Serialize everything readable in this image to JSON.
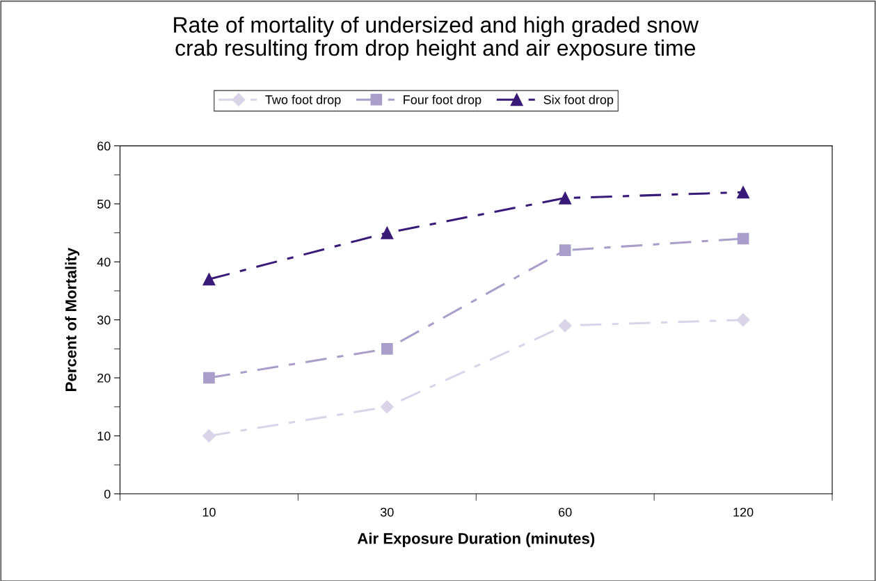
{
  "chart_data": {
    "type": "line",
    "title": "Rate of mortality of undersized and high graded snow\ncrab resulting from drop height and air exposure time",
    "xlabel": "Air Exposure Duration (minutes)",
    "ylabel": "Percent of Mortality",
    "categories": [
      "10",
      "30",
      "60",
      "120"
    ],
    "series": [
      {
        "name": "Two foot drop",
        "color": "#d9d4e8",
        "marker": "diamond",
        "values": [
          10,
          15,
          29,
          30
        ]
      },
      {
        "name": "Four foot drop",
        "color": "#a99dca",
        "marker": "square",
        "values": [
          20,
          25,
          42,
          44
        ]
      },
      {
        "name": "Six foot drop",
        "color": "#3a1a78",
        "marker": "triangle",
        "values": [
          37,
          45,
          51,
          52
        ]
      }
    ],
    "ylim": [
      0,
      60
    ],
    "yticks": [
      0,
      10,
      20,
      30,
      40,
      50,
      60
    ],
    "grid": false,
    "legend": "top",
    "line_style": "dashdot"
  }
}
